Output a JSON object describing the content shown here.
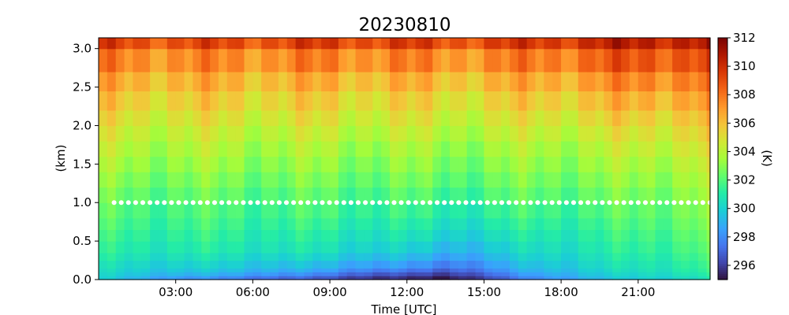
{
  "chart_data": {
    "type": "heatmap",
    "title": "20230810",
    "xlabel": "Time [UTC]",
    "ylabel": "(km)",
    "xlim": [
      0,
      23.8
    ],
    "ylim": [
      0,
      3.14
    ],
    "x_tick_labels": [
      "03:00",
      "06:00",
      "09:00",
      "12:00",
      "15:00",
      "18:00",
      "21:00"
    ],
    "x_ticks": [
      3,
      6,
      9,
      12,
      15,
      18,
      21
    ],
    "y_tick_labels": [
      "0.0",
      "0.5",
      "1.0",
      "1.5",
      "2.0",
      "2.5",
      "3.0"
    ],
    "y_ticks": [
      0,
      0.5,
      1.0,
      1.5,
      2.0,
      2.5,
      3.0
    ],
    "colorbar": {
      "label": "(K)",
      "range": [
        295,
        312
      ],
      "tick_labels": [
        "296",
        "298",
        "300",
        "302",
        "304",
        "306",
        "308",
        "310",
        "312"
      ],
      "ticks": [
        296,
        298,
        300,
        302,
        304,
        306,
        308,
        310,
        312
      ],
      "colormap": "turbo"
    },
    "time_step_hours": 0.3333,
    "height_levels_km": [
      0,
      0.05,
      0.1,
      0.15,
      0.25,
      0.35,
      0.5,
      0.65,
      0.8,
      1.0,
      1.2,
      1.4,
      1.6,
      1.8,
      2.0,
      2.2,
      2.45,
      2.7,
      3.0
    ],
    "profile_by_hour": [
      {
        "hour": 0,
        "values": [
          299.8,
          300.0,
          300.2,
          300.4,
          300.8,
          301.1,
          301.4,
          301.7,
          302.0,
          302.4,
          302.9,
          303.4,
          303.9,
          304.4,
          305.0,
          305.7,
          306.5,
          307.6,
          309.2
        ]
      },
      {
        "hour": 3,
        "values": [
          298.4,
          299.2,
          299.7,
          300.1,
          300.6,
          301.0,
          301.3,
          301.6,
          301.9,
          302.3,
          302.8,
          303.3,
          303.8,
          304.3,
          304.9,
          305.6,
          306.4,
          307.4,
          309.0
        ]
      },
      {
        "hour": 6,
        "values": [
          297.6,
          298.6,
          299.3,
          299.8,
          300.4,
          300.9,
          301.2,
          301.5,
          301.8,
          302.2,
          302.7,
          303.2,
          303.7,
          304.2,
          304.8,
          305.5,
          306.3,
          307.4,
          309.1
        ]
      },
      {
        "hour": 9,
        "values": [
          296.5,
          297.5,
          298.4,
          299.1,
          299.9,
          300.5,
          300.9,
          301.3,
          301.7,
          302.1,
          302.6,
          303.1,
          303.6,
          304.2,
          304.8,
          305.5,
          306.4,
          307.6,
          309.4
        ]
      },
      {
        "hour": 11,
        "values": [
          295.8,
          296.7,
          297.7,
          298.6,
          299.5,
          300.2,
          300.7,
          301.1,
          301.5,
          302.0,
          302.5,
          303.0,
          303.5,
          304.1,
          304.7,
          305.4,
          306.3,
          307.5,
          309.3
        ]
      },
      {
        "hour": 13,
        "values": [
          295.2,
          296.0,
          296.9,
          297.8,
          298.7,
          299.5,
          300.2,
          300.7,
          301.2,
          301.8,
          302.4,
          302.9,
          303.4,
          304.0,
          304.6,
          305.3,
          306.2,
          307.4,
          309.2
        ]
      },
      {
        "hour": 15,
        "values": [
          296.3,
          297.0,
          297.7,
          298.3,
          299.0,
          299.6,
          300.2,
          300.7,
          301.2,
          301.8,
          302.3,
          302.8,
          303.3,
          303.9,
          304.5,
          305.2,
          306.1,
          307.3,
          309.1
        ]
      },
      {
        "hour": 17,
        "values": [
          298.2,
          298.8,
          299.3,
          299.7,
          300.2,
          300.6,
          301.0,
          301.4,
          301.8,
          302.3,
          302.8,
          303.3,
          303.8,
          304.4,
          305.0,
          305.8,
          306.7,
          307.9,
          309.7
        ]
      },
      {
        "hour": 19,
        "values": [
          299.2,
          299.6,
          299.9,
          300.2,
          300.5,
          300.8,
          301.1,
          301.4,
          301.8,
          302.3,
          302.8,
          303.3,
          303.8,
          304.4,
          305.1,
          305.9,
          306.9,
          308.2,
          310.0
        ]
      },
      {
        "hour": 21,
        "values": [
          300.0,
          300.3,
          300.6,
          300.8,
          301.1,
          301.4,
          301.7,
          302.0,
          302.3,
          302.7,
          303.2,
          303.7,
          304.3,
          304.9,
          305.6,
          306.5,
          307.6,
          308.9,
          310.6
        ]
      },
      {
        "hour": 24,
        "values": [
          300.8,
          301.2,
          301.5,
          301.7,
          302.0,
          302.3,
          302.6,
          302.9,
          303.2,
          303.6,
          304.0,
          304.5,
          305.0,
          305.6,
          306.2,
          307.0,
          307.9,
          309.0,
          310.5
        ]
      }
    ],
    "marker_line": {
      "height_km": 1.0,
      "color": "#ffffff",
      "style": "dotted"
    }
  }
}
